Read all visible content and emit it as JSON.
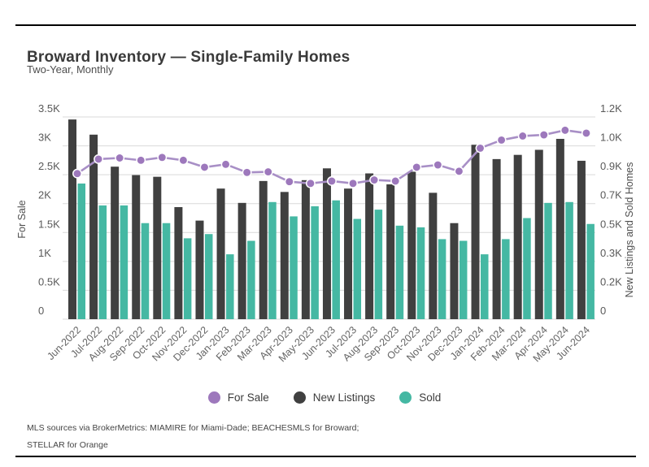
{
  "header": {
    "title": "Broward Inventory — Single-Family Homes",
    "subtitle": "Two-Year, Monthly"
  },
  "chart_data": {
    "type": "bar",
    "subtype": "grouped-bars-with-line",
    "categories": [
      "Jun-2022",
      "Jul-2022",
      "Aug-2022",
      "Sep-2022",
      "Oct-2022",
      "Nov-2022",
      "Dec-2022",
      "Jan-2023",
      "Feb-2023",
      "Mar-2023",
      "Apr-2023",
      "May-2023",
      "Jun-2023",
      "Jul-2023",
      "Aug-2023",
      "Sep-2023",
      "Oct-2023",
      "Nov-2023",
      "Dec-2023",
      "Jan-2024",
      "Feb-2024",
      "Mar-2024",
      "Apr-2024",
      "May-2024",
      "Jun-2024"
    ],
    "series": [
      {
        "name": "For Sale",
        "type": "line",
        "axis": "left",
        "color": "#a88fc6",
        "dot_color": "#9d78bc",
        "values": [
          2520,
          2770,
          2790,
          2750,
          2800,
          2750,
          2630,
          2680,
          2540,
          2550,
          2380,
          2350,
          2390,
          2350,
          2410,
          2390,
          2630,
          2670,
          2560,
          2960,
          3100,
          3170,
          3190,
          3270,
          3220
        ]
      },
      {
        "name": "New Listings",
        "type": "bar",
        "axis": "right",
        "color": "#404040",
        "values": [
          1185,
          1095,
          905,
          855,
          845,
          665,
          585,
          775,
          690,
          820,
          755,
          825,
          895,
          775,
          865,
          800,
          875,
          750,
          570,
          1035,
          950,
          975,
          1005,
          1070,
          940
        ]
      },
      {
        "name": "Sold",
        "type": "bar",
        "axis": "right",
        "color": "#45b8a3",
        "values": [
          805,
          675,
          675,
          570,
          570,
          480,
          505,
          385,
          465,
          695,
          610,
          670,
          705,
          595,
          650,
          555,
          545,
          475,
          465,
          385,
          475,
          600,
          690,
          695,
          565
        ]
      }
    ],
    "left_axis": {
      "title": "For Sale",
      "min": 0,
      "max": 3500,
      "ticks": [
        "3.5K",
        "3K",
        "2.5K",
        "2K",
        "1.5K",
        "1K",
        "0.5K",
        "0"
      ]
    },
    "right_axis": {
      "title": "New Listings and Sold Homes",
      "min": 0,
      "max": 1200,
      "ticks": [
        "1.2K",
        "1.0K",
        "0.9K",
        "0.7K",
        "0.5K",
        "0.3K",
        "0.2K",
        "0"
      ]
    },
    "grid": true,
    "grid_color": "#d9d9d9",
    "tick_label_color": "#595959",
    "legend_position": "bottom"
  },
  "legend": {
    "items": [
      {
        "label": "For Sale",
        "color": "#9d78bc"
      },
      {
        "label": "New Listings",
        "color": "#404040"
      },
      {
        "label": "Sold",
        "color": "#45b8a3"
      }
    ]
  },
  "footnotes": {
    "line1": "MLS sources via BrokerMetrics: MIAMIRE for Miami-Dade; BEACHESMLS for Broward;",
    "line2": "STELLAR for Orange"
  }
}
